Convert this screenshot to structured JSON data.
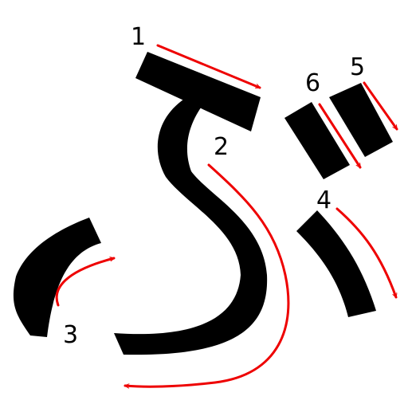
{
  "character": "ぶ",
  "colors": {
    "stroke": "#000000",
    "arrow": "#ee0000",
    "number": "#000000",
    "background": "#ffffff"
  },
  "stroke_numbers": {
    "s1": "1",
    "s2": "2",
    "s3": "3",
    "s4": "4",
    "s5": "5",
    "s6": "6"
  }
}
